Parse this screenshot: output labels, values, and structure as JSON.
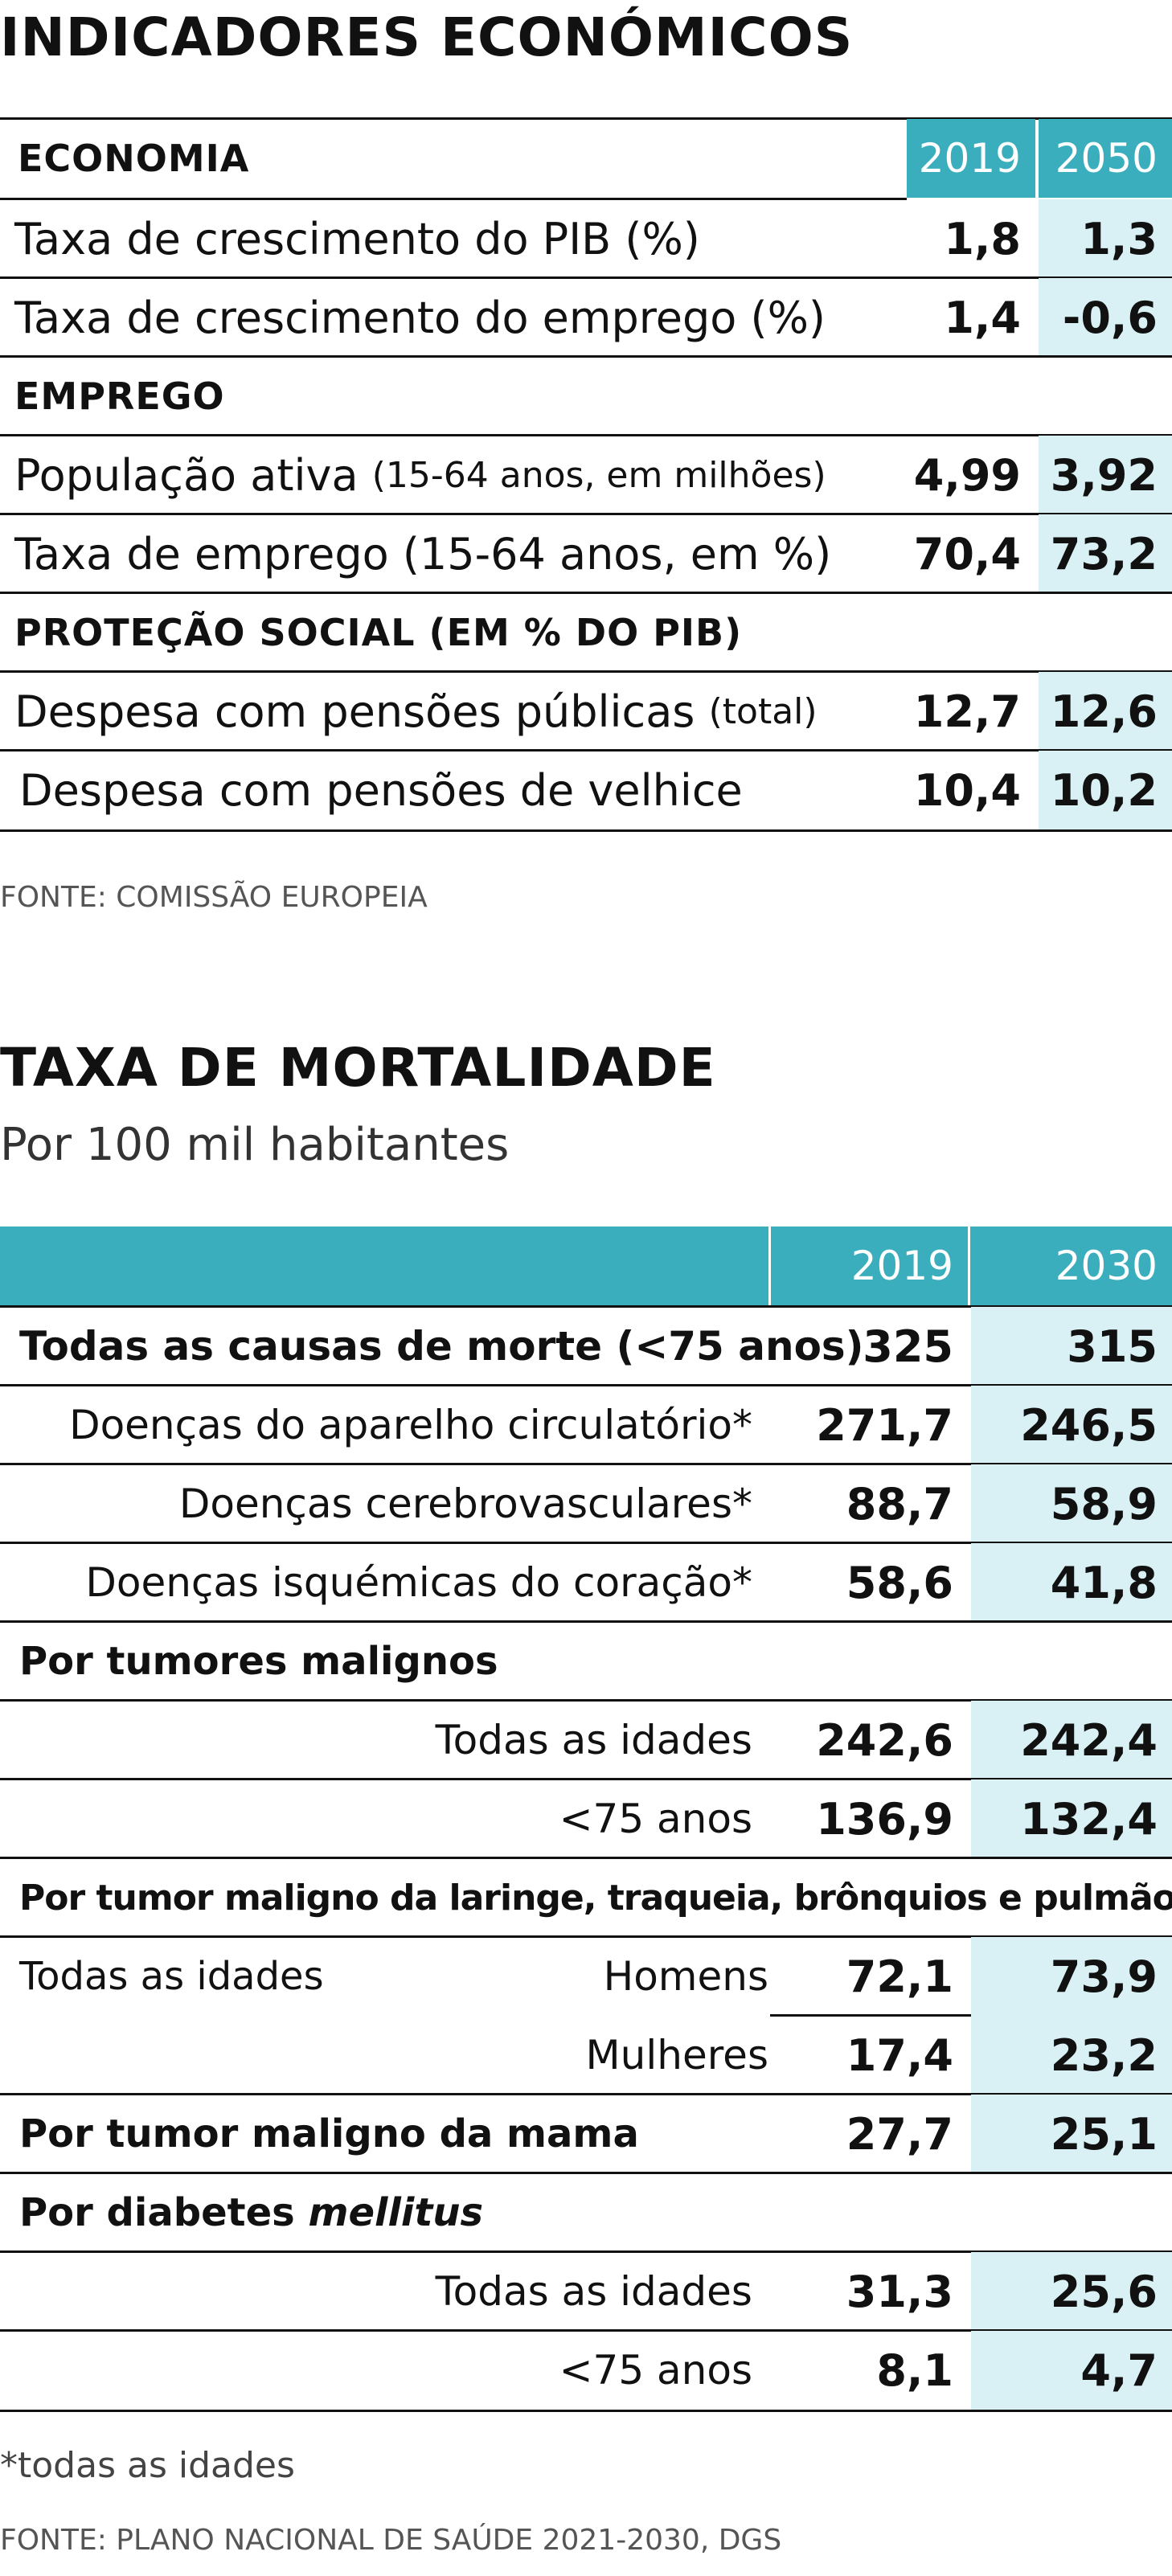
{
  "economic": {
    "title": "INDICADORES ECONÓMICOS",
    "header": {
      "label": "ECONOMIA",
      "col1": "2019",
      "col2": "2050"
    },
    "rows": [
      {
        "label": "Taxa de crescimento do PIB (%)",
        "v1": "1,8",
        "v2": "1,3"
      },
      {
        "label": "Taxa de crescimento do emprego (%)",
        "v1": "1,4",
        "v2": "-0,6"
      }
    ],
    "section_employment": "EMPREGO",
    "employment_rows": [
      {
        "label": "População ativa",
        "note": "(15-64 anos, em milhões)",
        "v1": "4,99",
        "v2": "3,92"
      },
      {
        "label": "Taxa de emprego (15-64 anos, em %)",
        "note": "",
        "v1": "70,4",
        "v2": "73,2"
      }
    ],
    "section_social": "PROTEÇÃO SOCIAL (EM % DO PIB)",
    "social_rows": [
      {
        "label": "Despesa com pensões públicas",
        "note": "(total)",
        "v1": "12,7",
        "v2": "12,6"
      },
      {
        "label": "Despesa com pensões de velhice",
        "note": "",
        "v1": "10,4",
        "v2": "10,2"
      }
    ],
    "source": "FONTE: COMISSÃO EUROPEIA"
  },
  "mortality": {
    "title": "TAXA DE MORTALIDADE",
    "subtitle": "Por 100 mil habitantes",
    "header": {
      "col1": "2019",
      "col2": "2030"
    },
    "all_causes": {
      "label": "Todas as causas de morte (<75 anos)",
      "v1": "325",
      "v2": "315"
    },
    "circ_rows": [
      {
        "label": "Doenças do aparelho circulatório*",
        "v1": "271,7",
        "v2": "246,5"
      },
      {
        "label": "Doenças cerebrovasculares*",
        "v1": "88,7",
        "v2": "58,9"
      },
      {
        "label": "Doenças isquémicas do coração*",
        "v1": "58,6",
        "v2": "41,8"
      }
    ],
    "tumors_label": "Por tumores malignos",
    "tumor_rows": [
      {
        "label": "Todas as idades",
        "v1": "242,6",
        "v2": "242,4"
      },
      {
        "label": "<75 anos",
        "v1": "136,9",
        "v2": "132,4"
      }
    ],
    "lung_label": "Por tumor maligno da laringe, traqueia, brônquios e pulmão",
    "lung_group_label": "Todas as idades",
    "lung_rows": [
      {
        "label": "Homens",
        "v1": "72,1",
        "v2": "73,9"
      },
      {
        "label": "Mulheres",
        "v1": "17,4",
        "v2": "23,2"
      }
    ],
    "breast": {
      "label": "Por tumor maligno da mama",
      "v1": "27,7",
      "v2": "25,1"
    },
    "diabetes_label_prefix": "Por diabetes ",
    "diabetes_label_italic": "mellitus",
    "diabetes_rows": [
      {
        "label": "Todas as idades",
        "v1": "31,3",
        "v2": "25,6"
      },
      {
        "label": "<75 anos",
        "v1": "8,1",
        "v2": "4,7"
      }
    ],
    "footnote": "*todas as idades",
    "source": "FONTE: PLANO NACIONAL DE SAÚDE 2021-2030, DGS"
  },
  "colors": {
    "teal": "#3aaebc",
    "light_teal": "#d9f1f4"
  }
}
